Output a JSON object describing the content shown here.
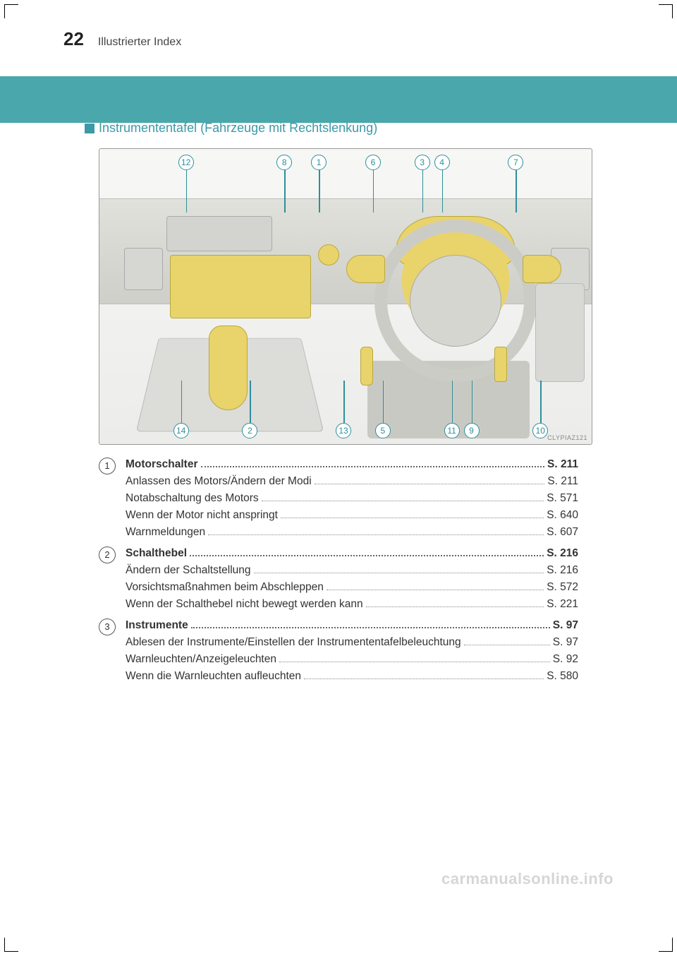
{
  "page_number": "22",
  "chapter_title": "Illustrierter Index",
  "section_heading": "Instrumententafel (Fahrzeuge mit Rechtslenkung)",
  "colors": {
    "teal_band": "#4aa7ac",
    "callout_ring": "#2e8f9a",
    "highlight": "#e9d36b",
    "highlight_border": "#b9a83e",
    "text": "#333333",
    "light_panel": "#d6d6d2"
  },
  "figure": {
    "code": "CLYPIAZ121",
    "callouts_top": [
      {
        "n": "12",
        "left_pct": 16
      },
      {
        "n": "8",
        "left_pct": 36
      },
      {
        "n": "1",
        "left_pct": 43
      },
      {
        "n": "6",
        "left_pct": 54
      },
      {
        "n": "3",
        "left_pct": 64
      },
      {
        "n": "4",
        "left_pct": 68
      },
      {
        "n": "7",
        "left_pct": 83
      }
    ],
    "callouts_bottom": [
      {
        "n": "14",
        "left_pct": 15
      },
      {
        "n": "2",
        "left_pct": 29
      },
      {
        "n": "13",
        "left_pct": 48
      },
      {
        "n": "5",
        "left_pct": 56
      },
      {
        "n": "11",
        "left_pct": 70
      },
      {
        "n": "9",
        "left_pct": 74
      },
      {
        "n": "10",
        "left_pct": 88
      }
    ]
  },
  "entries": [
    {
      "num": "1",
      "head": {
        "label": "Motorschalter",
        "page": "S. 211"
      },
      "subs": [
        {
          "label": "Anlassen des Motors/Ändern der Modi",
          "page": "S. 211"
        },
        {
          "label": "Notabschaltung des Motors",
          "page": "S. 571"
        },
        {
          "label": "Wenn der Motor nicht anspringt",
          "page": "S. 640"
        },
        {
          "label": "Warnmeldungen",
          "page": "S. 607"
        }
      ]
    },
    {
      "num": "2",
      "head": {
        "label": "Schalthebel",
        "page": "S. 216"
      },
      "subs": [
        {
          "label": "Ändern der Schaltstellung",
          "page": "S. 216"
        },
        {
          "label": "Vorsichtsmaßnahmen beim Abschleppen",
          "page": "S. 572"
        },
        {
          "label": "Wenn der Schalthebel nicht bewegt werden kann",
          "page": "S. 221"
        }
      ]
    },
    {
      "num": "3",
      "head": {
        "label": "Instrumente",
        "page": "S. 97"
      },
      "subs": [
        {
          "label": "Ablesen der Instrumente/Einstellen der Instrumententafelbeleuchtung",
          "page": "S. 97"
        },
        {
          "label": "Warnleuchten/Anzeigeleuchten",
          "page": "S. 92"
        },
        {
          "label": "Wenn die Warnleuchten aufleuchten",
          "page": "S. 580"
        }
      ]
    }
  ],
  "watermark": "carmanualsonline.info"
}
